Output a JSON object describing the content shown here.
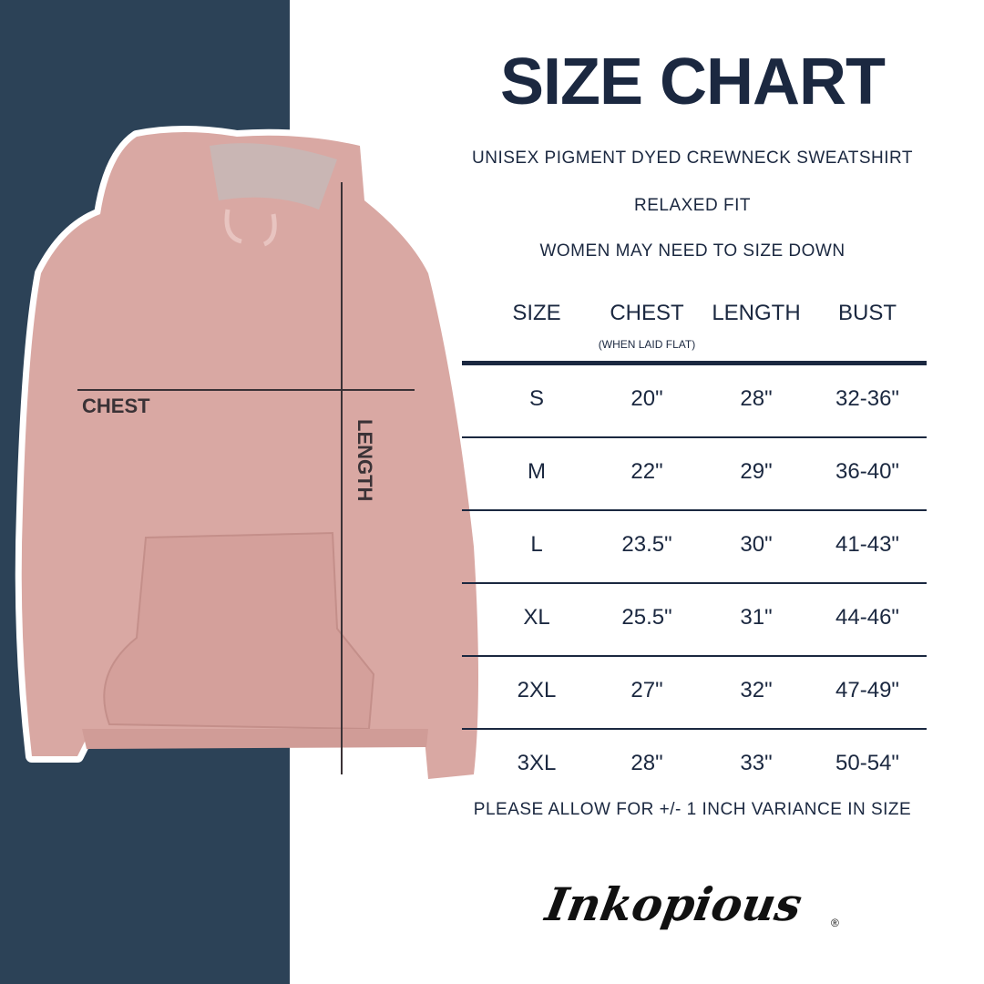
{
  "colors": {
    "panel": "#2c4257",
    "text": "#1b2840",
    "garment": "#d9a8a3"
  },
  "title": "SIZE CHART",
  "subtitle": "UNISEX PIGMENT DYED CREWNECK SWEATSHIRT",
  "fit": "RELAXED FIT",
  "advice": "WOMEN MAY NEED TO SIZE DOWN",
  "image_labels": {
    "chest": "CHEST",
    "length": "LENGTH"
  },
  "table": {
    "headers": [
      "SIZE",
      "CHEST",
      "LENGTH",
      "BUST"
    ],
    "chest_note": "(WHEN LAID FLAT)",
    "rows": [
      [
        "S",
        "20\"",
        "28\"",
        "32-36\""
      ],
      [
        "M",
        "22\"",
        "29\"",
        "36-40\""
      ],
      [
        "L",
        "23.5\"",
        "30\"",
        "41-43\""
      ],
      [
        "XL",
        "25.5\"",
        "31\"",
        "44-46\""
      ],
      [
        "2XL",
        "27\"",
        "32\"",
        "47-49\""
      ],
      [
        "3XL",
        "28\"",
        "33\"",
        "50-54\""
      ]
    ]
  },
  "footnote": "PLEASE ALLOW FOR +/- 1 INCH VARIANCE IN SIZE",
  "logo": "Inkopious"
}
